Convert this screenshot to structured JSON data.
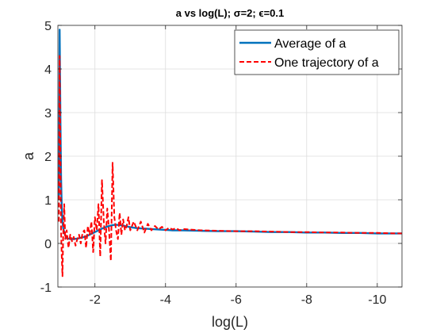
{
  "chart_data": {
    "type": "line",
    "title": "a vs log(L); σ=2; ϵ=0.1",
    "xlabel": "log(L)",
    "ylabel": "a",
    "xlim": [
      -0.95,
      -10.7
    ],
    "x_reversed": true,
    "ylim": [
      -1,
      5
    ],
    "x_ticks": [
      -2,
      -4,
      -6,
      -8,
      -10
    ],
    "y_ticks": [
      -1,
      0,
      1,
      2,
      3,
      4,
      5
    ],
    "x_tick_labels": [
      "-2",
      "-4",
      "-6",
      "-8",
      "-10"
    ],
    "y_tick_labels": [
      "-1",
      "0",
      "1",
      "2",
      "3",
      "4",
      "5"
    ],
    "grid": true,
    "legend_position": "top-right",
    "series": [
      {
        "name": "Average of a",
        "color": "#0072BD",
        "style": "solid",
        "x": [
          -0.98,
          -1.0,
          -1.02,
          -1.04,
          -1.06,
          -1.08,
          -1.1,
          -1.15,
          -1.2,
          -1.3,
          -1.4,
          -1.5,
          -1.6,
          -1.7,
          -1.8,
          -1.9,
          -2.0,
          -2.1,
          -2.2,
          -2.3,
          -2.4,
          -2.5,
          -2.6,
          -2.7,
          -2.8,
          -2.9,
          -3.0,
          -3.2,
          -3.4,
          -3.6,
          -3.8,
          -4.0,
          -4.2,
          -4.5,
          -5.0,
          -5.5,
          -6.0,
          -6.5,
          -7.0,
          -7.5,
          -8.0,
          -8.5,
          -9.0,
          -9.5,
          -10.0,
          -10.5,
          -10.7
        ],
        "y": [
          1.0,
          4.9,
          3.0,
          1.5,
          0.8,
          0.5,
          0.35,
          0.2,
          0.12,
          0.1,
          0.1,
          0.11,
          0.13,
          0.15,
          0.18,
          0.22,
          0.26,
          0.3,
          0.34,
          0.37,
          0.4,
          0.42,
          0.43,
          0.42,
          0.41,
          0.39,
          0.37,
          0.35,
          0.34,
          0.33,
          0.32,
          0.31,
          0.3,
          0.3,
          0.29,
          0.28,
          0.28,
          0.27,
          0.26,
          0.26,
          0.25,
          0.25,
          0.24,
          0.24,
          0.23,
          0.23,
          0.23
        ]
      },
      {
        "name": "One trajectory of a",
        "color": "#FF0000",
        "style": "dashed",
        "x": [
          -0.98,
          -1.0,
          -1.02,
          -1.04,
          -1.06,
          -1.08,
          -1.1,
          -1.13,
          -1.16,
          -1.2,
          -1.25,
          -1.3,
          -1.35,
          -1.4,
          -1.45,
          -1.5,
          -1.55,
          -1.6,
          -1.65,
          -1.7,
          -1.75,
          -1.8,
          -1.85,
          -1.9,
          -1.95,
          -2.0,
          -2.05,
          -2.1,
          -2.15,
          -2.2,
          -2.25,
          -2.3,
          -2.35,
          -2.4,
          -2.45,
          -2.5,
          -2.55,
          -2.6,
          -2.65,
          -2.7,
          -2.75,
          -2.8,
          -2.85,
          -2.9,
          -2.95,
          -3.0,
          -3.1,
          -3.2,
          -3.3,
          -3.4,
          -3.5,
          -3.6,
          -3.7,
          -3.8,
          -3.9,
          -4.0,
          -4.1,
          -4.2,
          -4.3,
          -4.4,
          -4.5,
          -5.0,
          -5.5,
          -6.0,
          -6.5,
          -7.0,
          -7.5,
          -8.0,
          -8.5,
          -9.0,
          -9.5,
          -10.0,
          -10.5,
          -10.7
        ],
        "y": [
          0.5,
          4.3,
          2.2,
          0.3,
          -0.3,
          -0.75,
          0.2,
          0.9,
          0.1,
          0.3,
          -0.1,
          0.2,
          0.05,
          0.15,
          -0.05,
          0.1,
          0.2,
          0.0,
          0.25,
          0.3,
          -0.1,
          0.4,
          0.2,
          0.5,
          -0.2,
          0.6,
          0.3,
          0.9,
          -0.3,
          1.45,
          0.5,
          0.0,
          0.8,
          0.3,
          -0.4,
          1.85,
          0.6,
          0.3,
          0.1,
          0.7,
          0.2,
          0.55,
          0.3,
          0.4,
          0.6,
          0.3,
          0.5,
          0.3,
          0.5,
          0.25,
          0.45,
          0.3,
          0.4,
          0.32,
          0.38,
          0.3,
          0.36,
          0.32,
          0.35,
          0.3,
          0.33,
          0.3,
          0.29,
          0.28,
          0.28,
          0.27,
          0.26,
          0.26,
          0.25,
          0.25,
          0.24,
          0.24,
          0.23,
          0.23
        ]
      }
    ]
  }
}
